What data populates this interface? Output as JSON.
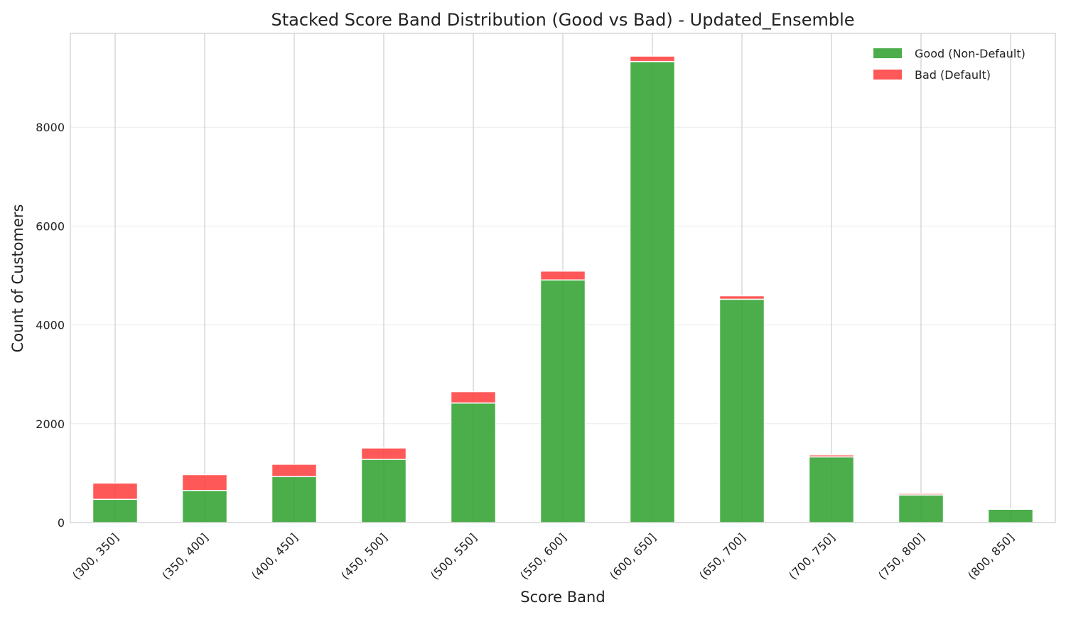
{
  "chart_data": {
    "type": "bar",
    "stacked": true,
    "title": "Stacked Score Band Distribution (Good vs Bad) - Updated_Ensemble",
    "xlabel": "Score Band",
    "ylabel": "Count of Customers",
    "categories": [
      "(300, 350]",
      "(350, 400]",
      "(400, 450]",
      "(450, 500]",
      "(500, 550]",
      "(550, 600]",
      "(600, 650]",
      "(650, 700]",
      "(700, 750]",
      "(750, 800]",
      "(800, 850]"
    ],
    "series": [
      {
        "name": "Good (Non-Default)",
        "color": "#2ca02c",
        "values": [
          470,
          650,
          930,
          1280,
          2420,
          4910,
          9330,
          4520,
          1330,
          560,
          270
        ]
      },
      {
        "name": "Bad (Default)",
        "color": "#ff3b3b",
        "values": [
          330,
          320,
          250,
          230,
          230,
          180,
          110,
          70,
          40,
          30,
          5
        ]
      }
    ],
    "ylim": [
      0,
      9900
    ],
    "yticks": [
      0,
      2000,
      4000,
      6000,
      8000
    ],
    "grid": true,
    "legend_position": "top-right"
  }
}
